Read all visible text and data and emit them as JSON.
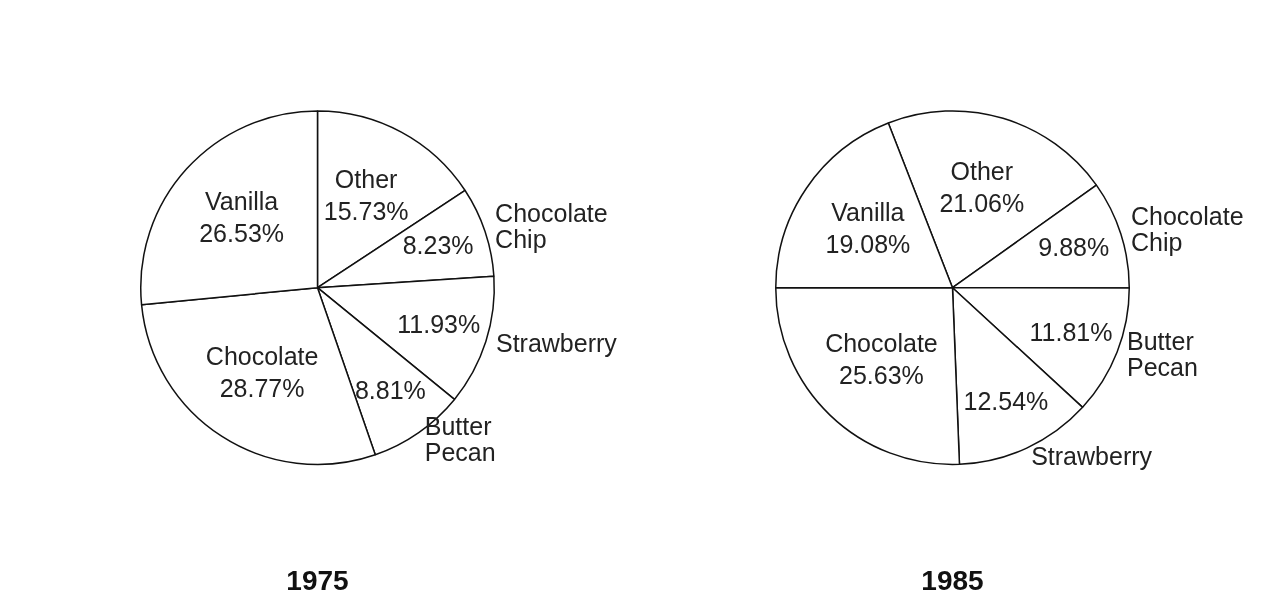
{
  "chart_data": [
    {
      "type": "pie",
      "title": "1975",
      "categories": [
        "Other",
        "Chocolate Chip",
        "Strawberry",
        "Butter Pecan",
        "Chocolate",
        "Vanilla"
      ],
      "values": [
        15.73,
        8.23,
        11.93,
        8.81,
        28.77,
        26.53
      ],
      "value_labels": [
        "15.73%",
        "8.23%",
        "11.93%",
        "8.81%",
        "28.77%",
        "26.53%"
      ],
      "colors": [
        "#ffffff",
        "#ffffff",
        "#ffffff",
        "#ffffff",
        "#ffffff",
        "#ffffff"
      ],
      "legend": false
    },
    {
      "type": "pie",
      "title": "1985",
      "categories": [
        "Other",
        "Chocolate Chip",
        "Butter Pecan",
        "Strawberry",
        "Chocolate",
        "Vanilla"
      ],
      "values": [
        21.06,
        9.88,
        11.81,
        12.54,
        25.63,
        19.08
      ],
      "value_labels": [
        "21.06%",
        "9.88%",
        "11.81%",
        "12.54%",
        "25.63%",
        "19.08%"
      ],
      "colors": [
        "#ffffff",
        "#ffffff",
        "#ffffff",
        "#ffffff",
        "#ffffff",
        "#ffffff"
      ],
      "legend": false
    }
  ]
}
